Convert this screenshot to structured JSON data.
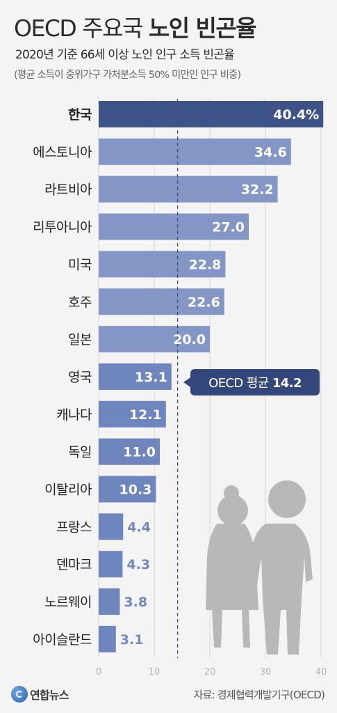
{
  "header": {
    "title_light": "OECD 주요국 ",
    "title_bold": "노인 빈곤율",
    "subtitle": "2020년 기준 66세 이상 노인 인구 소득 빈곤율",
    "note": "(평균 소득이 중위가구 가처분소득 50% 미만인 인구 비중)"
  },
  "chart_data": {
    "type": "bar",
    "orientation": "horizontal",
    "categories": [
      "한국",
      "에스토니아",
      "라트비아",
      "리투아니아",
      "미국",
      "호주",
      "일본",
      "영국",
      "캐나다",
      "독일",
      "이탈리아",
      "프랑스",
      "덴마크",
      "노르웨이",
      "아이슬란드"
    ],
    "values": [
      40.4,
      34.6,
      32.2,
      27.0,
      22.8,
      22.6,
      20.0,
      13.1,
      12.1,
      11.0,
      10.3,
      4.4,
      4.3,
      3.8,
      3.1
    ],
    "value_labels": [
      "40.4%",
      "34.6",
      "32.2",
      "27.0",
      "22.8",
      "22.6",
      "20.0",
      "13.1",
      "12.1",
      "11.0",
      "10.3",
      "4.4",
      "4.3",
      "3.8",
      "3.1"
    ],
    "highlight_index": 0,
    "xlim": [
      0,
      40
    ],
    "xticks": [
      0,
      10,
      20,
      30,
      40
    ],
    "reference_line": {
      "value": 14.2,
      "label_prefix": "OECD 평균 ",
      "label_value": "14.2"
    },
    "colors": {
      "highlight": "#3e5488",
      "bar": "#8496c6",
      "bar_dark": "#6f85bd",
      "label_outside": "#7488bd",
      "callout": "#34477a",
      "refline": "#3e4f7d",
      "grid": "#d4d4d4",
      "tick": "#b3b3b3"
    }
  },
  "footer": {
    "logo": "연합뉴스",
    "source": "자료: 경제협력개발기구(OECD)"
  }
}
